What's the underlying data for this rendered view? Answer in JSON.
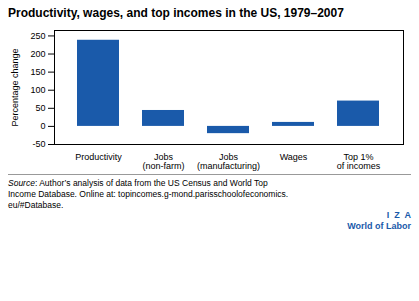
{
  "chart_data": {
    "type": "bar",
    "title": "Productivity, wages, and top incomes in the US, 1979–2007",
    "categories": [
      "Productivity",
      "Jobs\n(non-farm)",
      "Jobs\n(manufacturing)",
      "Wages",
      "Top 1%\nof incomes"
    ],
    "values": [
      238,
      44,
      -20,
      11,
      70
    ],
    "color": "#1a5aaa",
    "ylabel": "Percentage change",
    "ylim": [
      -50,
      265
    ],
    "yticks": [
      -50,
      0,
      50,
      100,
      150,
      200,
      250
    ],
    "grid": false,
    "annotations": [
      "Source",
      ": Author’s analysis of data from the US Census and World Top\nIncome Database. Online at: topincomes.g-mond.parisschoolofeconomics.\neu/#Database.",
      "I  Z  A",
      "World of Labor"
    ]
  }
}
